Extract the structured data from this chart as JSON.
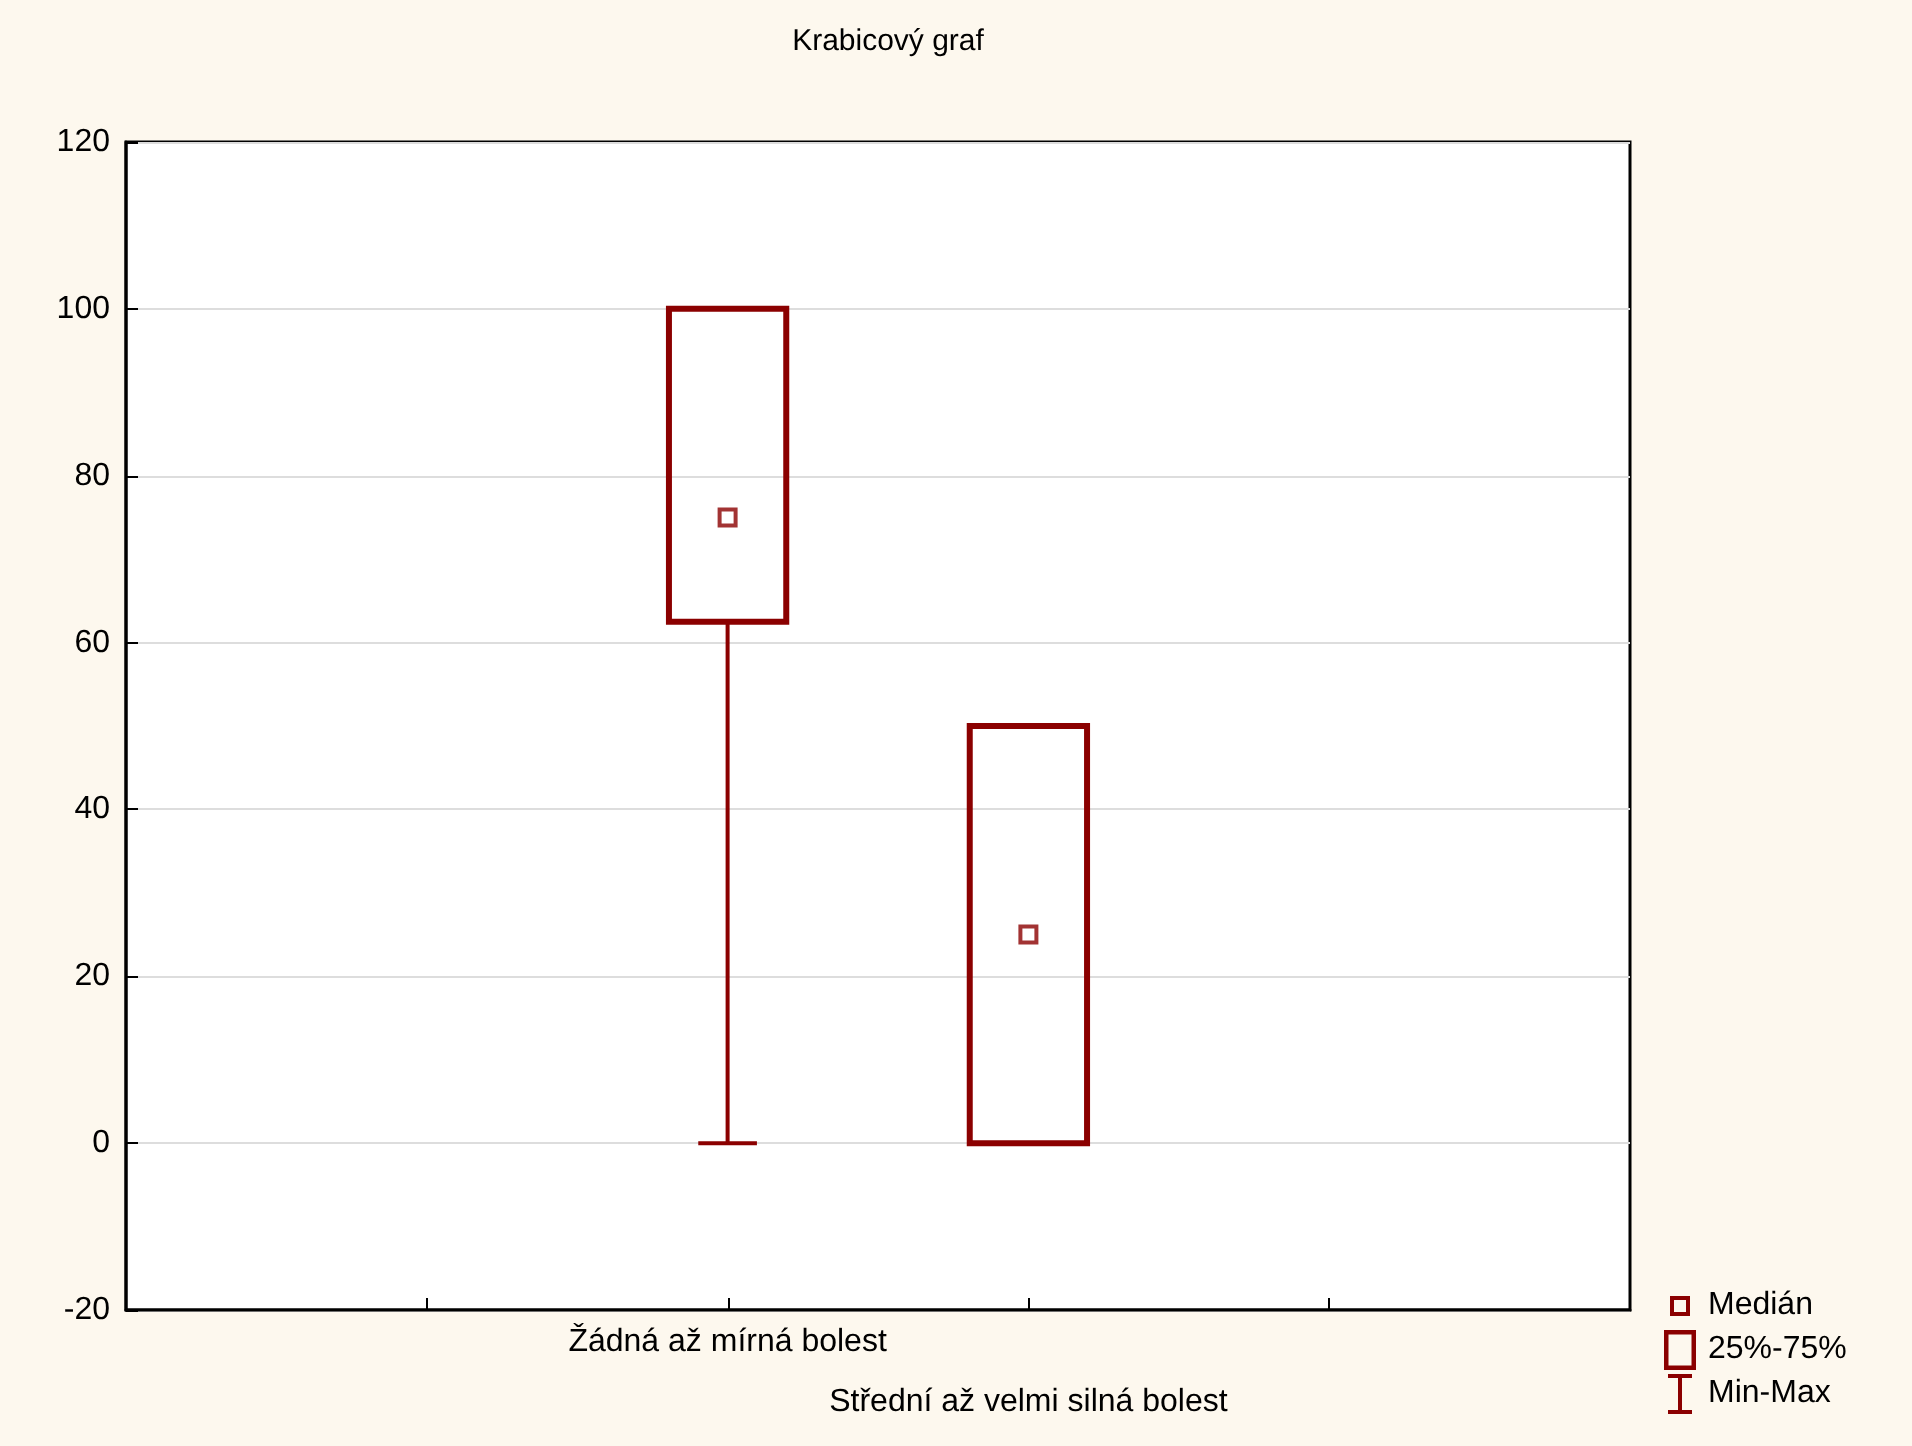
{
  "chart_data": {
    "type": "box",
    "title": "Krabicový graf",
    "categories": [
      "Žádná až mírná bolest",
      "Střední až velmi silná bolest"
    ],
    "series": [
      {
        "color": "#8b0000",
        "boxes": [
          {
            "low": 0,
            "q1": 62.5,
            "median": 75,
            "q3": 100,
            "high": 100
          },
          {
            "low": 0,
            "q1": 0,
            "median": 25,
            "q3": 50,
            "high": 50
          }
        ]
      }
    ],
    "ylim": [
      -20,
      120
    ],
    "yticks": [
      -20,
      0,
      20,
      40,
      60,
      80,
      100,
      120
    ],
    "grid": "y",
    "marker": "square",
    "annotations": [
      "Medián",
      "25%-75%",
      "Min-Max"
    ]
  }
}
